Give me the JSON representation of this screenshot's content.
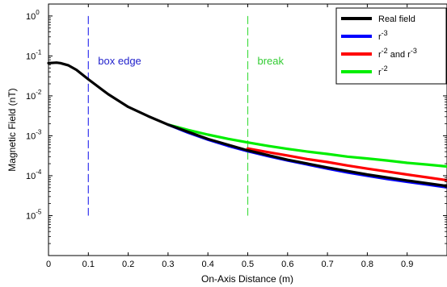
{
  "chart_data": {
    "type": "line",
    "title": "",
    "xlabel": "On-Axis Distance (m)",
    "ylabel": "Magnetic Field (nT)",
    "xlim": [
      0,
      1.0
    ],
    "ylim_log10": [
      -6,
      0.3
    ],
    "yscale": "log",
    "grid": false,
    "legend_position": "top-right",
    "x_ticks": [
      "0",
      "0.1",
      "0.2",
      "0.3",
      "0.4",
      "0.5",
      "0.6",
      "0.7",
      "0.8",
      "0.9"
    ],
    "y_ticks": [
      {
        "base": "10",
        "exp": "0",
        "log": 0
      },
      {
        "base": "10",
        "exp": "-1",
        "log": -1
      },
      {
        "base": "10",
        "exp": "-2",
        "log": -2
      },
      {
        "base": "10",
        "exp": "-3",
        "log": -3
      },
      {
        "base": "10",
        "exp": "-4",
        "log": -4
      },
      {
        "base": "10",
        "exp": "-5",
        "log": -5
      }
    ],
    "series": [
      {
        "name": "Real field",
        "color": "#000000",
        "x": [
          0.0,
          0.02,
          0.03,
          0.05,
          0.07,
          0.1,
          0.15,
          0.2,
          0.25,
          0.3,
          0.4,
          0.5,
          0.6,
          0.7,
          0.8,
          0.9,
          1.0
        ],
        "y": [
          0.066,
          0.068,
          0.066,
          0.058,
          0.045,
          0.026,
          0.011,
          0.0053,
          0.0031,
          0.0019,
          0.00083,
          0.00043,
          0.00025,
          0.00016,
          0.000107,
          7.6e-05,
          5.5e-05
        ]
      },
      {
        "name": "r^3",
        "color": "#0000ff",
        "x": [
          0.3,
          0.35,
          0.4,
          0.45,
          0.5,
          0.55,
          0.6,
          0.65,
          0.7,
          0.75,
          0.8,
          0.85,
          0.9,
          0.95,
          1.0
        ],
        "y": [
          0.0019,
          0.0012,
          0.0008,
          0.00056,
          0.00041,
          0.00031,
          0.00024,
          0.00019,
          0.00015,
          0.000121,
          0.0001,
          8.3e-05,
          7e-05,
          6e-05,
          5.1e-05
        ]
      },
      {
        "name": "r^2 and r^3",
        "color": "#ff0000",
        "x": [
          0.5,
          0.55,
          0.6,
          0.65,
          0.7,
          0.75,
          0.8,
          0.85,
          0.9,
          0.95,
          1.0
        ],
        "y": [
          0.00048,
          0.00039,
          0.00032,
          0.00026,
          0.00022,
          0.00018,
          0.00015,
          0.000127,
          0.000107,
          9.1e-05,
          7.7e-05
        ]
      },
      {
        "name": "r^2",
        "color": "#00ee00",
        "x": [
          0.3,
          0.35,
          0.4,
          0.45,
          0.5,
          0.55,
          0.6,
          0.65,
          0.7,
          0.75,
          0.8,
          0.85,
          0.9,
          0.95,
          1.0
        ],
        "y": [
          0.0019,
          0.0014,
          0.00107,
          0.00084,
          0.00068,
          0.00056,
          0.00047,
          0.0004,
          0.00035,
          0.0003,
          0.00027,
          0.00024,
          0.00021,
          0.00019,
          0.00017
        ]
      }
    ],
    "legend_labels": [
      {
        "base": "Real field",
        "sup1": "",
        "mid": "",
        "sup2": ""
      },
      {
        "base": "r",
        "sup1": "-3",
        "mid": "",
        "sup2": ""
      },
      {
        "base": "r",
        "sup1": "-2",
        "mid": " and r",
        "sup2": "-3"
      },
      {
        "base": "r",
        "sup1": "-2",
        "mid": "",
        "sup2": ""
      }
    ],
    "vlines": [
      {
        "x": 0.1,
        "y_range": [
          1e-05,
          1.0
        ],
        "color": "#3333ee",
        "label": "box edge",
        "label_color": "#2222cc"
      },
      {
        "x": 0.5,
        "y_range": [
          1e-05,
          1.0
        ],
        "color": "#44dd44",
        "label": "break",
        "label_color": "#33cc33"
      }
    ]
  }
}
